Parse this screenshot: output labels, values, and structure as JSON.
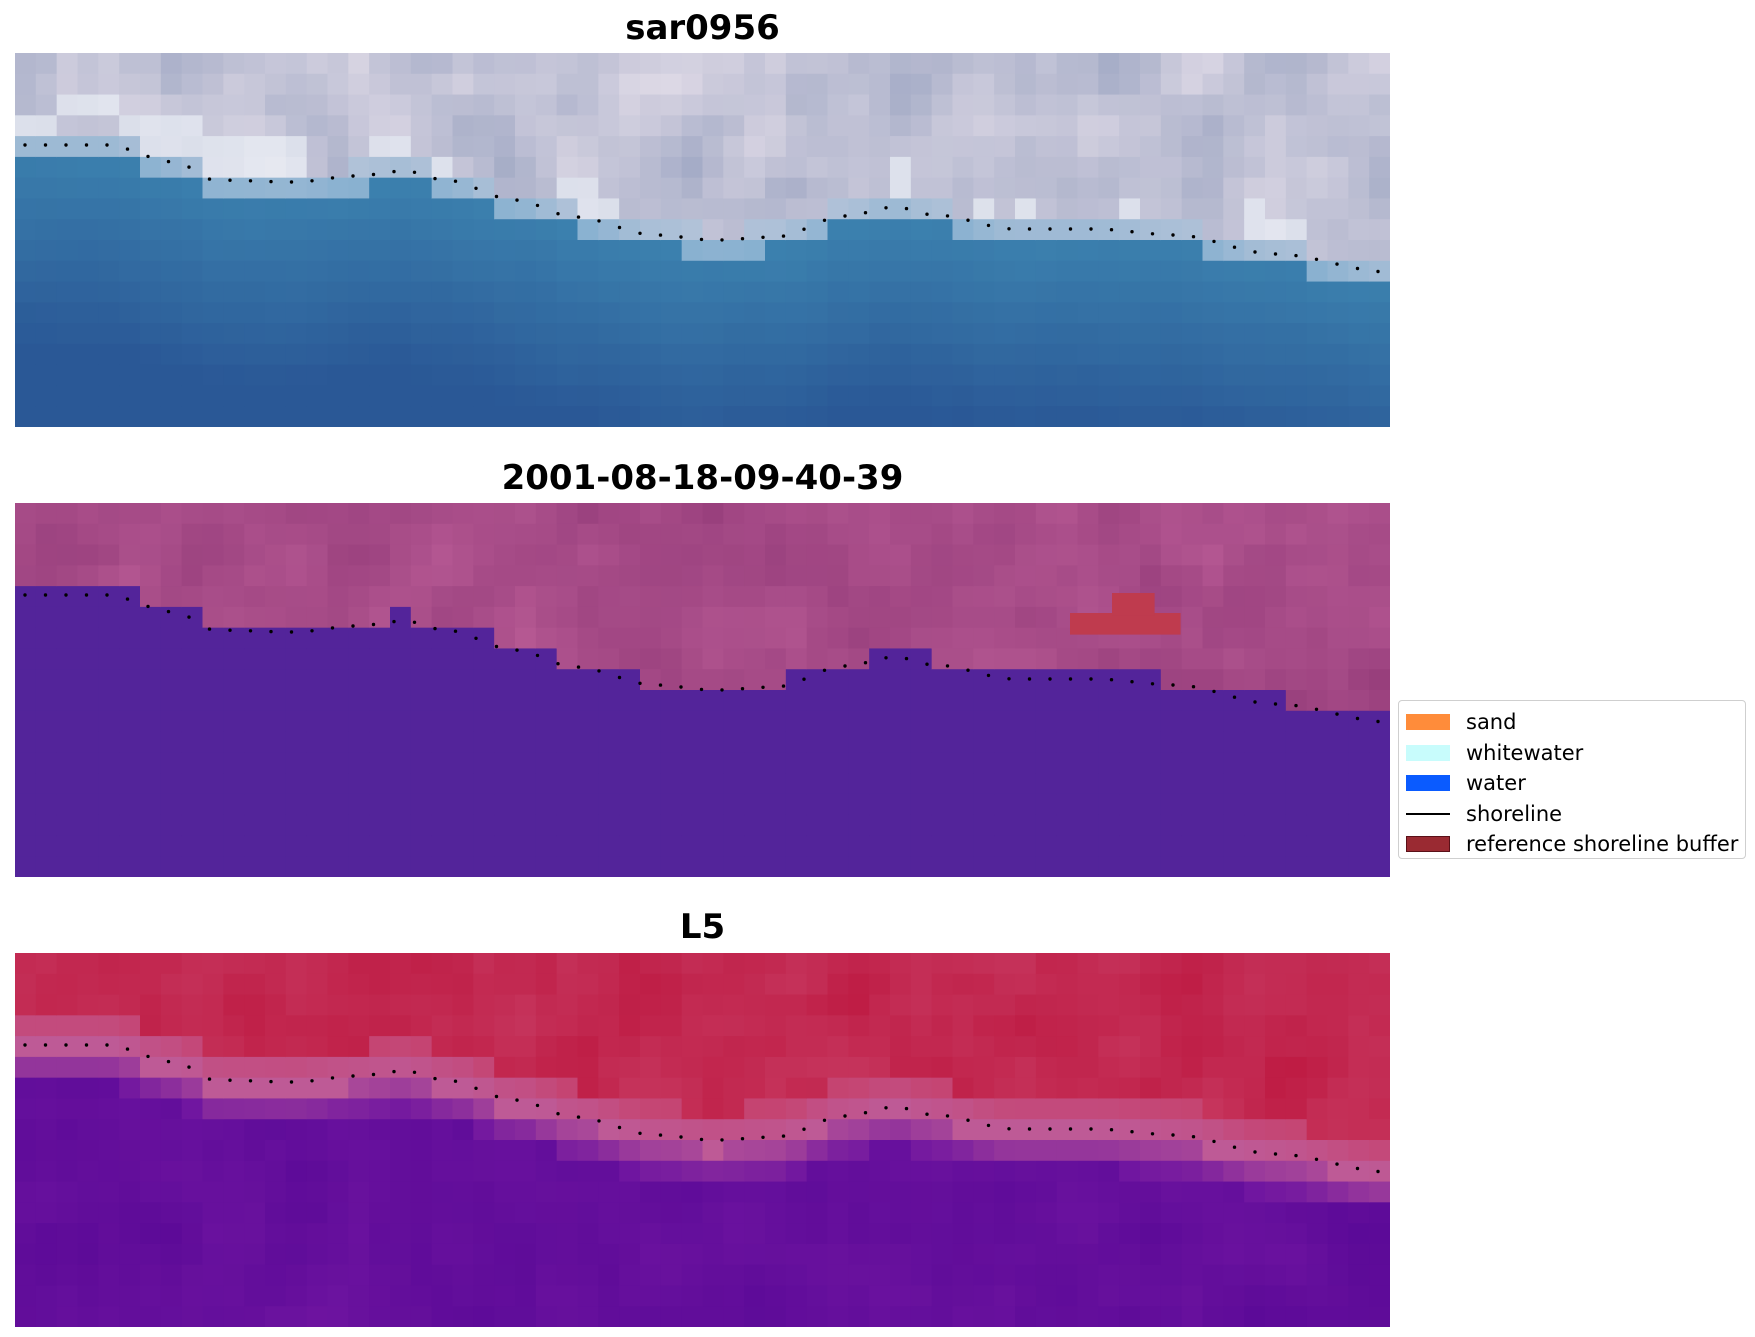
{
  "panels": [
    {
      "title": "sar0956",
      "kind": "rgb"
    },
    {
      "title": "2001-08-18-09-40-39",
      "kind": "classified"
    },
    {
      "title": "L5",
      "kind": "index"
    }
  ],
  "legend": {
    "items": [
      {
        "label": "sand",
        "type": "patch",
        "color": "#ff8c3a"
      },
      {
        "label": "whitewater",
        "type": "patch",
        "color": "#c8fcfc"
      },
      {
        "label": "water",
        "type": "patch",
        "color": "#0a5bff"
      },
      {
        "label": "shoreline",
        "type": "line",
        "color": "#000000"
      },
      {
        "label": "reference shoreline buffer",
        "type": "patch",
        "color": "#9a2a32"
      }
    ]
  },
  "colors": {
    "water_class": "#53249a",
    "land_class": "#a4457d",
    "buffer_class": "#bf3b4e",
    "shoreline": "#000000"
  }
}
